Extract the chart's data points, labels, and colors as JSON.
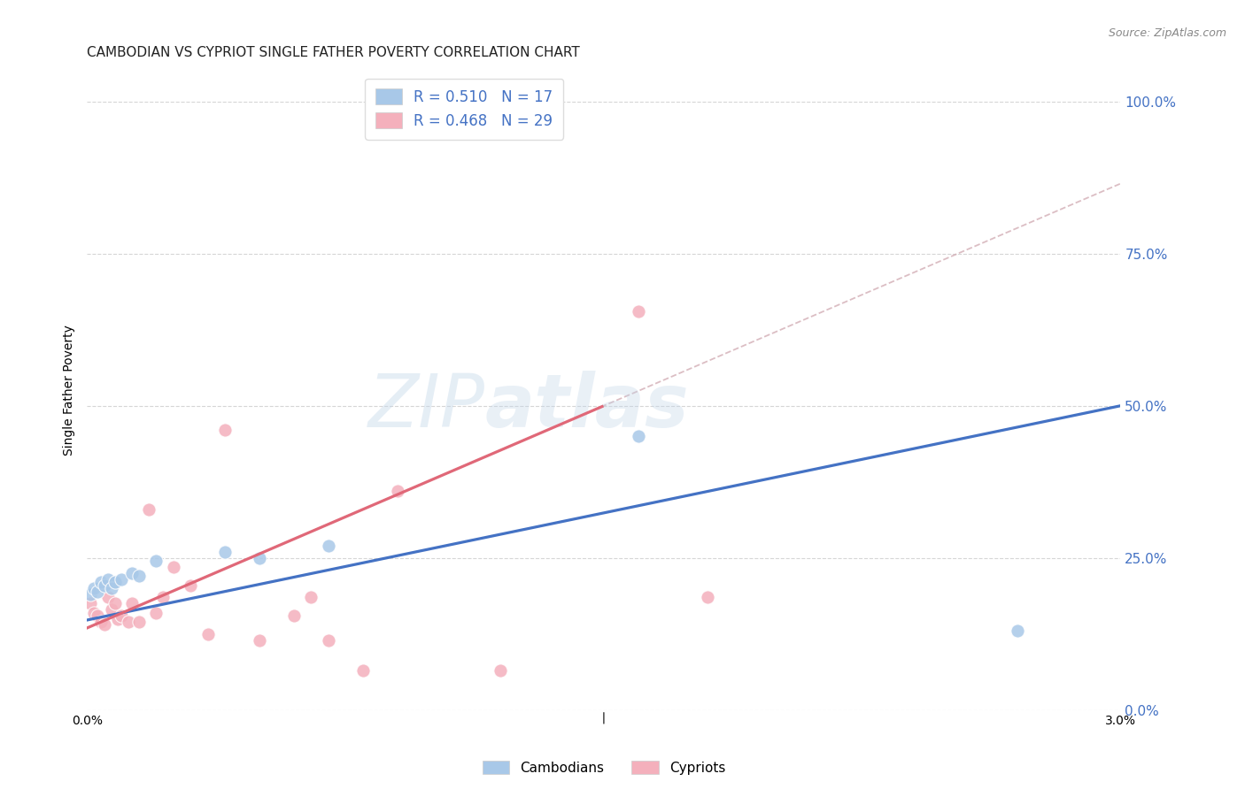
{
  "title": "CAMBODIAN VS CYPRIOT SINGLE FATHER POVERTY CORRELATION CHART",
  "source": "Source: ZipAtlas.com",
  "ylabel": "Single Father Poverty",
  "xlim": [
    0.0,
    0.03
  ],
  "ylim": [
    0.0,
    1.05
  ],
  "xticks": [
    0.0,
    0.005,
    0.01,
    0.015,
    0.02,
    0.025,
    0.03
  ],
  "xtick_labels": [
    "0.0%",
    "",
    "",
    "",
    "",
    "",
    "3.0%"
  ],
  "ytick_labels_right": [
    "0.0%",
    "25.0%",
    "50.0%",
    "75.0%",
    "100.0%"
  ],
  "yticks_right": [
    0.0,
    0.25,
    0.5,
    0.75,
    1.0
  ],
  "legend_blue_text": "R = 0.510   N = 17",
  "legend_pink_text": "R = 0.468   N = 29",
  "blue_scatter_color": "#A8C8E8",
  "pink_scatter_color": "#F4B0BC",
  "blue_line_color": "#4472C4",
  "pink_line_color": "#E06878",
  "dashed_line_color": "#D0A8B0",
  "grid_color": "#CCCCCC",
  "background_color": "#FFFFFF",
  "legend_text_color": "#4472C4",
  "right_tick_color": "#4472C4",
  "cambodian_x": [
    0.0001,
    0.0002,
    0.0003,
    0.0004,
    0.0005,
    0.0006,
    0.0007,
    0.0008,
    0.001,
    0.0013,
    0.0015,
    0.002,
    0.004,
    0.005,
    0.007,
    0.016,
    0.027
  ],
  "cambodian_y": [
    0.19,
    0.2,
    0.195,
    0.21,
    0.205,
    0.215,
    0.2,
    0.21,
    0.215,
    0.225,
    0.22,
    0.245,
    0.26,
    0.25,
    0.27,
    0.45,
    0.13
  ],
  "cypriot_x": [
    0.0001,
    0.0002,
    0.0003,
    0.0004,
    0.0005,
    0.0006,
    0.0007,
    0.0008,
    0.0009,
    0.001,
    0.0012,
    0.0013,
    0.0015,
    0.0018,
    0.002,
    0.0022,
    0.0025,
    0.003,
    0.0035,
    0.004,
    0.005,
    0.006,
    0.0065,
    0.007,
    0.008,
    0.009,
    0.012,
    0.016,
    0.018
  ],
  "cypriot_y": [
    0.175,
    0.16,
    0.155,
    0.145,
    0.14,
    0.185,
    0.165,
    0.175,
    0.15,
    0.155,
    0.145,
    0.175,
    0.145,
    0.33,
    0.16,
    0.185,
    0.235,
    0.205,
    0.125,
    0.46,
    0.115,
    0.155,
    0.185,
    0.115,
    0.065,
    0.36,
    0.065,
    0.655,
    0.185
  ],
  "title_fontsize": 11,
  "axis_fontsize": 10,
  "legend_fontsize": 12,
  "marker_size": 120,
  "bottom_label_cambodians": "Cambodians",
  "bottom_label_cypriots": "Cypriots"
}
